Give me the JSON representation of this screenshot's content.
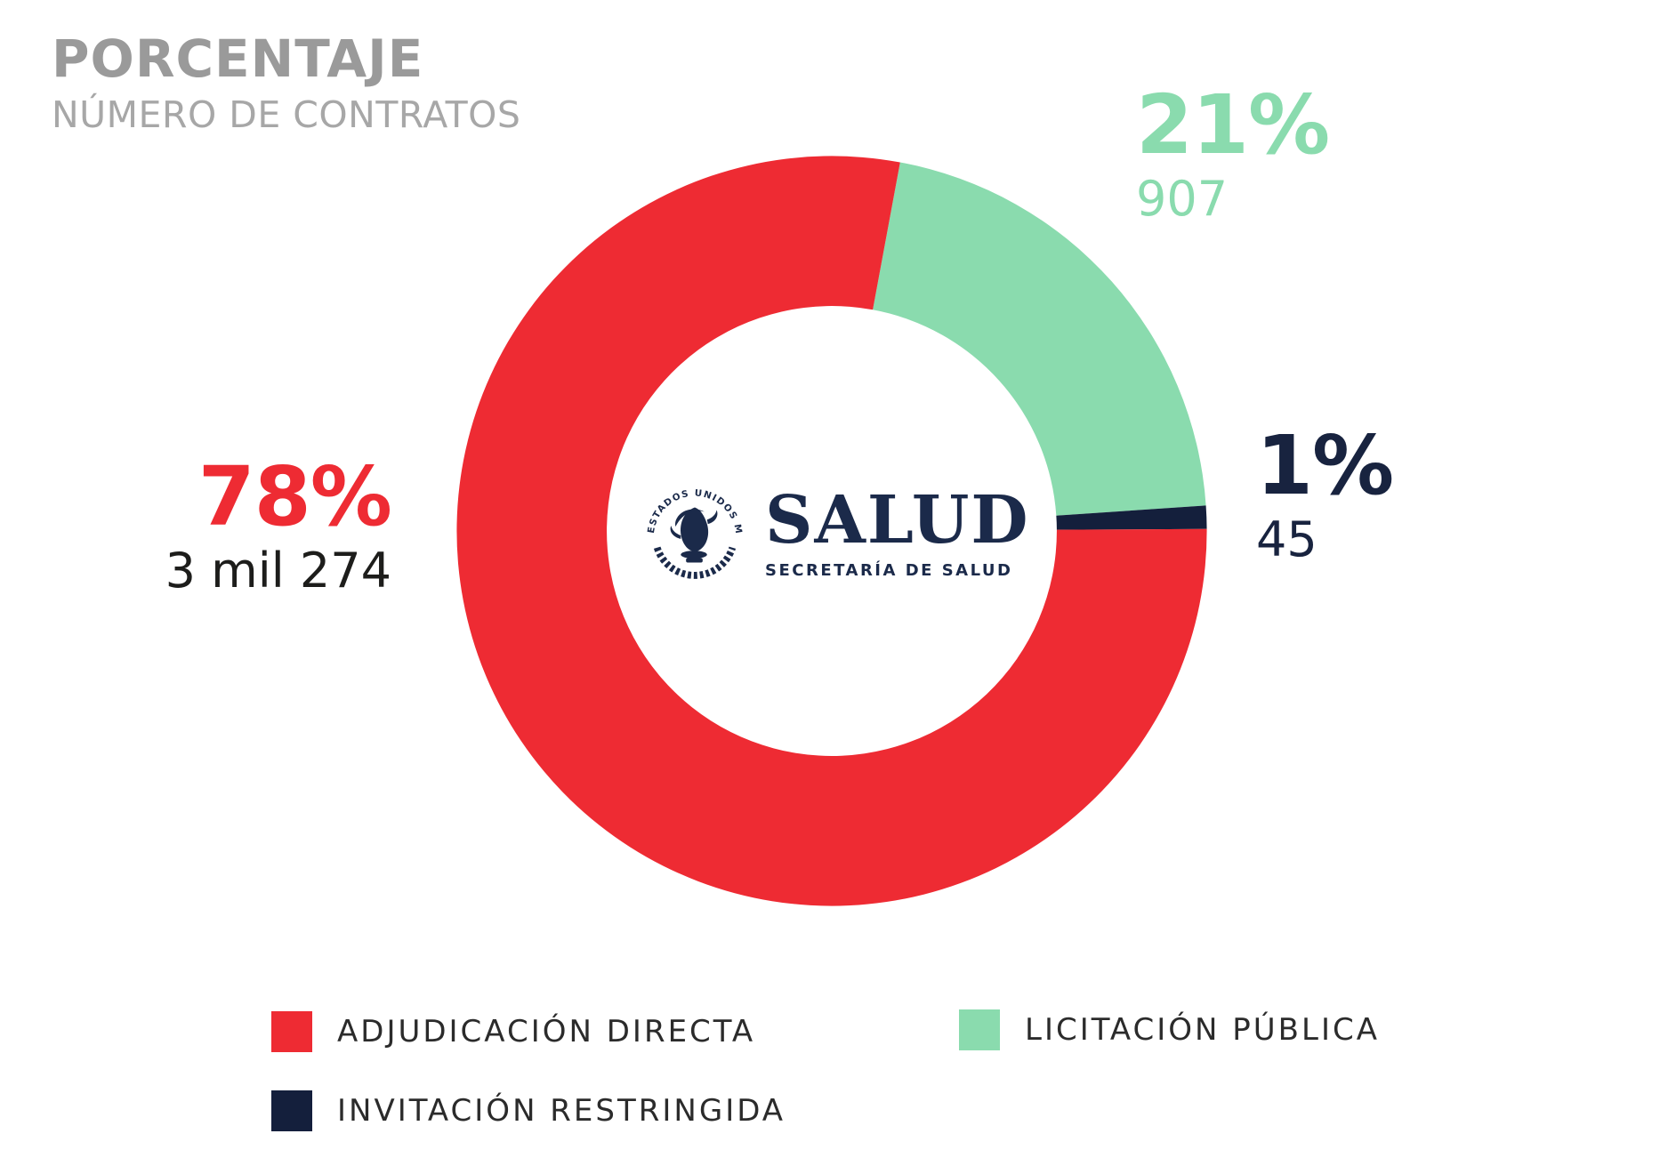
{
  "header": {
    "title": "PORCENTAJE",
    "subtitle": "NÚMERO DE CONTRATOS"
  },
  "logo": {
    "seal_text": "ESTADOS UNIDOS MEXICANOS",
    "name": "SALUD",
    "subtitle": "SECRETARÍA DE SALUD"
  },
  "chart_data": {
    "type": "pie",
    "subtype": "donut",
    "title": "PORCENTAJE",
    "subtitle": "NÚMERO DE CONTRATOS",
    "units": "número de contratos",
    "start_angle_deg": 10.5,
    "donut_inner_ratio": 0.6,
    "legend_position": "bottom",
    "slices": [
      {
        "label": "LICITACIÓN PÚBLICA",
        "percent": 21,
        "count": 907,
        "percent_label": "21%",
        "count_label": "907",
        "color": "#8adbae"
      },
      {
        "label": "INVITACIÓN RESTRINGIDA",
        "percent": 1,
        "count": 45,
        "percent_label": "1%",
        "count_label": "45",
        "color": "#141f3c"
      },
      {
        "label": "ADJUDICACIÓN DIRECTA",
        "percent": 78,
        "count": 3274,
        "percent_label": "78%",
        "count_label": "3 mil 274",
        "color": "#ee2b33"
      }
    ]
  },
  "colors": {
    "title_gray": "#9a9a9a",
    "subtitle_gray": "#a7a7a7",
    "count_dark": "#1d1d1b",
    "navy_text": "#18233f",
    "legend_text": "#2b2b2b",
    "logo_navy": "#1b2a4a",
    "background": "#ffffff"
  }
}
